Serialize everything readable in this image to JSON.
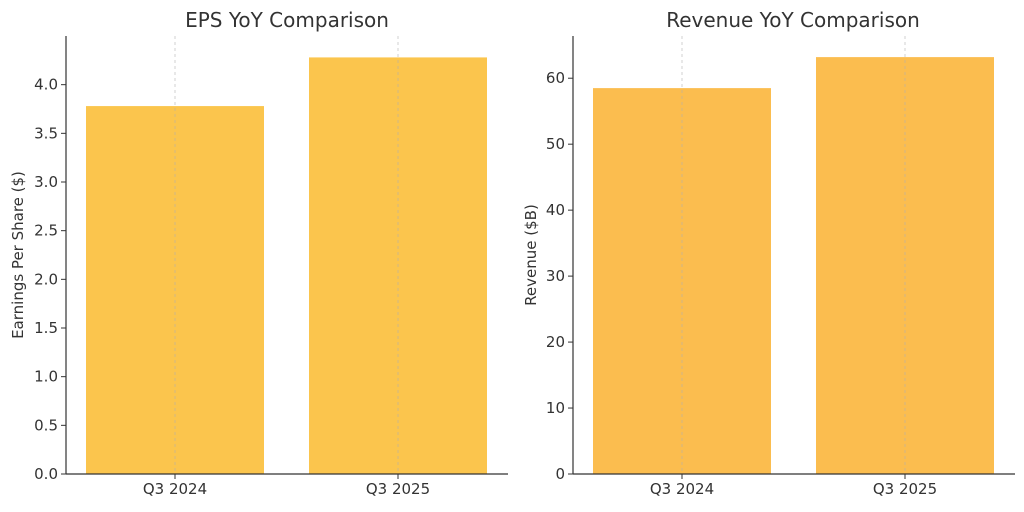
{
  "chart_data": [
    {
      "type": "bar",
      "title": "EPS YoY Comparison",
      "xlabel": "",
      "ylabel": "Earnings Per Share ($)",
      "categories": [
        "Q3 2024",
        "Q3 2025"
      ],
      "values": [
        3.78,
        4.28
      ],
      "ylim": [
        0,
        4.5
      ],
      "yticks": [
        "0.0",
        "0.5",
        "1.0",
        "1.5",
        "2.0",
        "2.5",
        "3.0",
        "3.5",
        "4.0"
      ],
      "grid": "x-dashed",
      "bar_color": "#fbc54d"
    },
    {
      "type": "bar",
      "title": "Revenue YoY Comparison",
      "xlabel": "",
      "ylabel": "Revenue ($B)",
      "categories": [
        "Q3 2024",
        "Q3 2025"
      ],
      "values": [
        58.5,
        63.2
      ],
      "ylim": [
        0,
        66.4
      ],
      "yticks": [
        "0",
        "10",
        "20",
        "30",
        "40",
        "50",
        "60"
      ],
      "grid": "x-dashed",
      "bar_color": "#fbbd4f"
    }
  ]
}
